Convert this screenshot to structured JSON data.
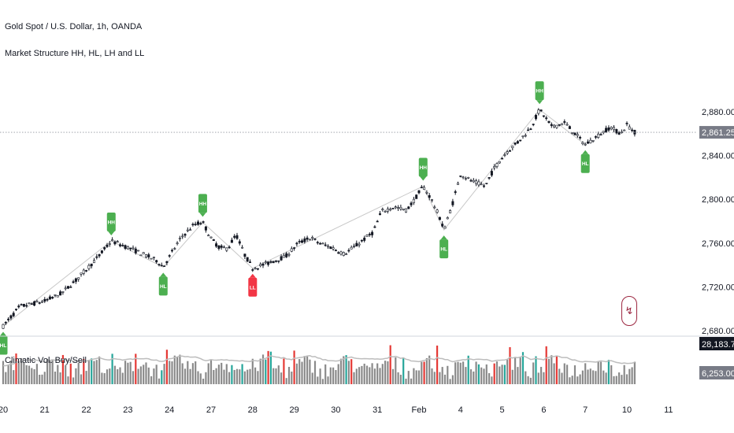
{
  "header": {
    "title": "Gold Spot / U.S. Dollar, 1h, OANDA",
    "indicator": "Market Structure HH, HL, LH and LL",
    "volume_indicator": "Climatic Vol. Buy/Sell"
  },
  "price_scale": {
    "current_price": "2,861.250",
    "current_price_bg": "#787b86",
    "volume_last": "28,183.700",
    "volume_ma": "6,253.000"
  },
  "colors": {
    "candle": "#131722",
    "label_green": "#4caf50",
    "label_red": "#f23645",
    "structure_line": "#c8c8c8",
    "volume_gray": "#8a8a8a",
    "volume_green": "#26a69a",
    "volume_red": "#e53935",
    "volume_ma": "#bdbdbd"
  },
  "chart_data": {
    "type": "candlestick",
    "title": "Gold Spot / U.S. Dollar, 1h, OANDA",
    "y_axis": {
      "ticks": [
        "2,680.000",
        "2,720.000",
        "2,760.000",
        "2,800.000",
        "2,840.000",
        "2,880.000"
      ],
      "tick_values": [
        2680,
        2720,
        2760,
        2800,
        2840,
        2880
      ],
      "range": [
        2670,
        2903
      ]
    },
    "x_axis": {
      "ticks": [
        "20",
        "21",
        "22",
        "23",
        "24",
        "27",
        "28",
        "29",
        "30",
        "31",
        "Feb",
        "4",
        "5",
        "6",
        "7",
        "10",
        "11"
      ],
      "range": [
        0,
        16
      ]
    },
    "price_path": [
      [
        0,
        2684
      ],
      [
        0.4,
        2702
      ],
      [
        1,
        2707
      ],
      [
        1.4,
        2714
      ],
      [
        1.75,
        2726
      ],
      [
        2.3,
        2748
      ],
      [
        2.6,
        2762
      ],
      [
        3.0,
        2756
      ],
      [
        3.3,
        2751
      ],
      [
        3.7,
        2744
      ],
      [
        3.85,
        2738
      ],
      [
        4.1,
        2754
      ],
      [
        4.3,
        2766
      ],
      [
        4.6,
        2777
      ],
      [
        4.8,
        2779
      ],
      [
        5.0,
        2764
      ],
      [
        5.2,
        2756
      ],
      [
        5.4,
        2755
      ],
      [
        5.6,
        2768
      ],
      [
        5.8,
        2750
      ],
      [
        6.0,
        2737
      ],
      [
        6.4,
        2742
      ],
      [
        6.8,
        2748
      ],
      [
        7.1,
        2760
      ],
      [
        7.4,
        2765
      ],
      [
        7.6,
        2760
      ],
      [
        7.9,
        2756
      ],
      [
        8.2,
        2750
      ],
      [
        8.5,
        2758
      ],
      [
        8.9,
        2770
      ],
      [
        9.1,
        2789
      ],
      [
        9.4,
        2793
      ],
      [
        9.7,
        2790
      ],
      [
        9.9,
        2800
      ],
      [
        10.1,
        2812
      ],
      [
        10.3,
        2800
      ],
      [
        10.5,
        2783
      ],
      [
        10.6,
        2772
      ],
      [
        10.8,
        2795
      ],
      [
        11.0,
        2823
      ],
      [
        11.3,
        2816
      ],
      [
        11.6,
        2812
      ],
      [
        11.8,
        2828
      ],
      [
        12.1,
        2843
      ],
      [
        12.4,
        2853
      ],
      [
        12.7,
        2866
      ],
      [
        12.9,
        2882
      ],
      [
        13.2,
        2866
      ],
      [
        13.5,
        2870
      ],
      [
        13.8,
        2858
      ],
      [
        14.0,
        2850
      ],
      [
        14.3,
        2858
      ],
      [
        14.6,
        2866
      ],
      [
        14.85,
        2860
      ],
      [
        15.0,
        2868
      ],
      [
        15.2,
        2861
      ]
    ],
    "structure_labels": [
      {
        "text": "HL",
        "x": 0.0,
        "price": 2684,
        "position": "below",
        "color": "#4caf50"
      },
      {
        "text": "HH",
        "x": 2.6,
        "price": 2762,
        "position": "above",
        "color": "#4caf50"
      },
      {
        "text": "HL",
        "x": 3.85,
        "price": 2738,
        "position": "below",
        "color": "#4caf50"
      },
      {
        "text": "HH",
        "x": 4.8,
        "price": 2779,
        "position": "above",
        "color": "#4caf50"
      },
      {
        "text": "LL",
        "x": 6.0,
        "price": 2737,
        "position": "below",
        "color": "#f23645"
      },
      {
        "text": "HH",
        "x": 10.1,
        "price": 2812,
        "position": "above",
        "color": "#4caf50"
      },
      {
        "text": "HL",
        "x": 10.6,
        "price": 2772,
        "position": "below",
        "color": "#4caf50"
      },
      {
        "text": "HH",
        "x": 12.9,
        "price": 2882,
        "position": "above",
        "color": "#4caf50"
      },
      {
        "text": "HL",
        "x": 14.0,
        "price": 2850,
        "position": "below",
        "color": "#4caf50"
      }
    ],
    "legend": "none",
    "grid": false
  }
}
